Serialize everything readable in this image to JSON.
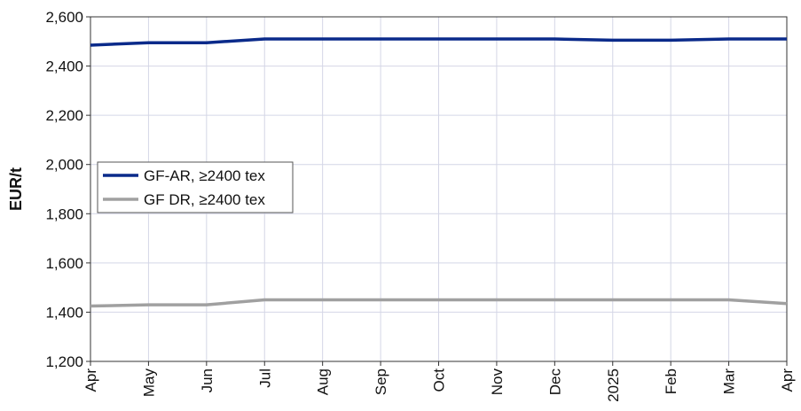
{
  "chart_data": {
    "type": "line",
    "categories": [
      "Apr",
      "May",
      "Jun",
      "Jul",
      "Aug",
      "Sep",
      "Oct",
      "Nov",
      "Dec",
      "2025",
      "Feb",
      "Mar",
      "Apr"
    ],
    "ylabel": "EUR/t",
    "ylim": [
      1200,
      2600
    ],
    "yticks": [
      "1,200",
      "1,400",
      "1,600",
      "1,800",
      "2,000",
      "2,200",
      "2,400",
      "2,600"
    ],
    "grid": true,
    "legend_position": "middle-left",
    "series": [
      {
        "name": "GF-AR, ≥2400 tex",
        "color": "#0a2a8a",
        "values": [
          2485,
          2495,
          2495,
          2510,
          2510,
          2510,
          2510,
          2510,
          2510,
          2505,
          2505,
          2510,
          2510
        ]
      },
      {
        "name": "GF DR, ≥2400 tex",
        "color": "#a0a0a0",
        "values": [
          1425,
          1430,
          1430,
          1450,
          1450,
          1450,
          1450,
          1450,
          1450,
          1450,
          1450,
          1450,
          1435
        ]
      }
    ]
  }
}
